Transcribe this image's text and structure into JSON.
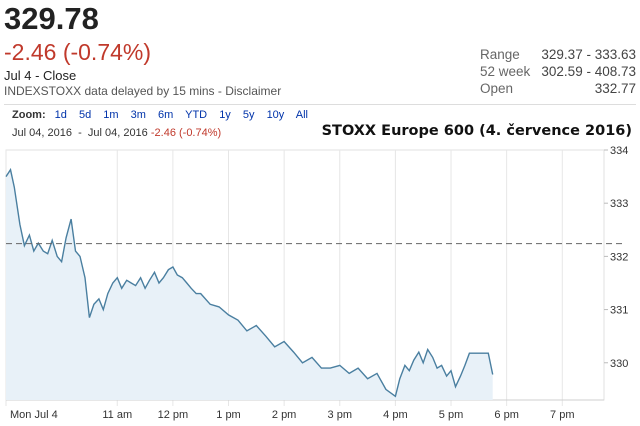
{
  "header": {
    "price": "329.78",
    "change": "-2.46 (-0.74%)",
    "as_of": "Jul 4 - Close",
    "delay_note": "INDEXSTOXX data delayed by 15 mins - Disclaimer"
  },
  "stats": [
    {
      "label": "Range",
      "value": "329.37 - 333.63"
    },
    {
      "label": "52 week",
      "value": "302.59 - 408.73"
    },
    {
      "label": "Open",
      "value": "332.77"
    }
  ],
  "toolbar": {
    "zoom_label": "Zoom:",
    "zoom_options": [
      "1d",
      "5d",
      "1m",
      "3m",
      "6m",
      "YTD",
      "1y",
      "5y",
      "10y",
      "All"
    ],
    "range_start": "Jul 04, 2016",
    "range_sep": "-",
    "range_end": "Jul 04, 2016",
    "range_change": "-2.46 (-0.74%)"
  },
  "colors": {
    "line": "#4a7fa0",
    "fill": "#e8f1f8",
    "negative": "#c0392b",
    "link": "#0033aa"
  },
  "chart_data": {
    "type": "area",
    "title": "STOXX Europe 600 (4. července 2016)",
    "xlabel": "",
    "ylabel": "",
    "ylim": [
      329.3,
      334.0
    ],
    "y_ticks": [
      330,
      331,
      332,
      333,
      334
    ],
    "y_tick_labels": [
      "330",
      "331",
      "332",
      "333",
      "334"
    ],
    "x_ticks": [
      9.0,
      11.0,
      12.0,
      13.0,
      14.0,
      15.0,
      16.0,
      17.0,
      18.0,
      19.0
    ],
    "x_tick_labels": [
      "Mon Jul 4",
      "11 am",
      "12 pm",
      "1 pm",
      "2 pm",
      "3 pm",
      "4 pm",
      "5 pm",
      "6 pm",
      "7 pm"
    ],
    "xlim": [
      9.0,
      19.75
    ],
    "previous_close": 332.24,
    "grid": "vertical",
    "series": [
      {
        "x": [
          9.0,
          9.08,
          9.15,
          9.25,
          9.33,
          9.42,
          9.5,
          9.58,
          9.67,
          9.75,
          9.83,
          9.92,
          10.0,
          10.08,
          10.17,
          10.25,
          10.33,
          10.42,
          10.5,
          10.58,
          10.67,
          10.75,
          10.83,
          10.92,
          11.0,
          11.08,
          11.17,
          11.25,
          11.33,
          11.42,
          11.5,
          11.58,
          11.67,
          11.75,
          11.83,
          11.92,
          12.0,
          12.08,
          12.17,
          12.25,
          12.33,
          12.42,
          12.5,
          12.67,
          12.83,
          13.0,
          13.17,
          13.33,
          13.5,
          13.67,
          13.83,
          14.0,
          14.17,
          14.33,
          14.5,
          14.67,
          14.83,
          15.0,
          15.17,
          15.33,
          15.5,
          15.67,
          15.83,
          16.0,
          16.08,
          16.17,
          16.25,
          16.33,
          16.42,
          16.5,
          16.58,
          16.67,
          16.75,
          16.83,
          16.92,
          17.0,
          17.08,
          17.17,
          17.25,
          17.33,
          17.42,
          17.5,
          17.58,
          17.67,
          17.75
        ],
        "values": [
          333.5,
          333.63,
          333.3,
          332.6,
          332.2,
          332.4,
          332.1,
          332.25,
          332.1,
          332.05,
          332.3,
          332.0,
          331.9,
          332.35,
          332.7,
          332.1,
          332.0,
          331.6,
          330.85,
          331.1,
          331.2,
          331.0,
          331.3,
          331.5,
          331.6,
          331.4,
          331.55,
          331.5,
          331.45,
          331.6,
          331.4,
          331.55,
          331.7,
          331.5,
          331.6,
          331.75,
          331.8,
          331.65,
          331.6,
          331.5,
          331.4,
          331.3,
          331.3,
          331.1,
          331.05,
          330.9,
          330.8,
          330.6,
          330.7,
          330.5,
          330.3,
          330.4,
          330.2,
          330.0,
          330.1,
          329.9,
          329.9,
          329.95,
          329.8,
          329.9,
          329.7,
          329.8,
          329.5,
          329.37,
          329.7,
          329.95,
          329.85,
          330.05,
          330.2,
          330.0,
          330.25,
          330.1,
          329.9,
          329.95,
          329.75,
          329.85,
          329.55,
          329.75,
          329.95,
          330.18,
          330.18,
          330.18,
          330.18,
          330.18,
          329.78
        ]
      }
    ]
  }
}
